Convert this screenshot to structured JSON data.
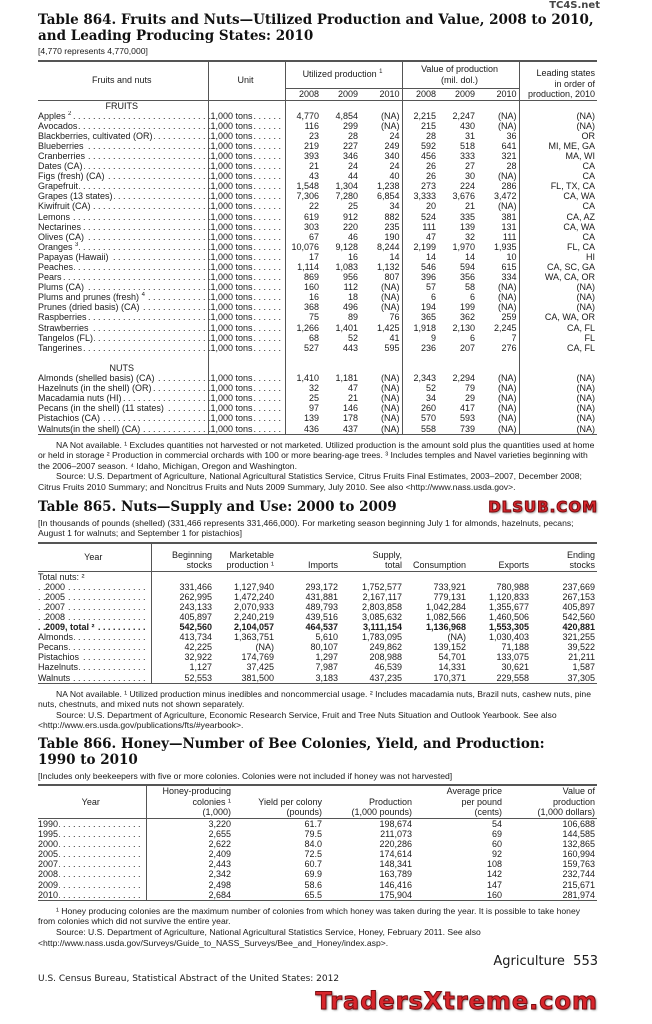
{
  "watermarks": {
    "top": "TC4S.net",
    "middle": "DLSUB.COM",
    "bottom": "TradersXtreme.com"
  },
  "t864": {
    "title1": "Table 864. Fruits and Nuts—Utilized Production and Value, 2008 to 2010,",
    "title2": "and Leading Producing States: 2010",
    "note": "[4,770 represents 4,770,000]",
    "headers": {
      "name": "Fruits and nuts",
      "unit": "Unit",
      "util": "Utilized production",
      "util_sup": "1",
      "value1": "Value of production",
      "value2": "(mil. dol.)",
      "states1": "Leading states",
      "states2": "in order of",
      "states3": "production, 2010",
      "y2008": "2008",
      "y2009": "2009",
      "y2010": "2010"
    },
    "fruits_label": "FRUITS",
    "nuts_label": "NUTS",
    "fruits": [
      [
        "Apples",
        "2",
        "1,000 tons",
        "4,770",
        "4,854",
        "(NA)",
        "2,215",
        "2,247",
        "(NA)",
        "(NA)"
      ],
      [
        "Avocados",
        "",
        "1,000 tons",
        "116",
        "299",
        "(NA)",
        "215",
        "430",
        "(NA)",
        "(NA)"
      ],
      [
        "Blackberries, cultivated (OR)",
        "",
        "1,000 tons",
        "23",
        "28",
        "24",
        "28",
        "31",
        "36",
        "OR"
      ],
      [
        "Blueberries",
        "",
        "1,000 tons",
        "219",
        "227",
        "249",
        "592",
        "518",
        "641",
        "MI, ME, GA"
      ],
      [
        "Cranberries",
        "",
        "1,000 tons",
        "393",
        "346",
        "340",
        "456",
        "333",
        "321",
        "MA, WI"
      ],
      [
        "Dates (CA)",
        "",
        "1,000 tons",
        "21",
        "24",
        "24",
        "26",
        "27",
        "28",
        "CA"
      ],
      [
        "Figs (fresh) (CA)",
        "",
        "1,000 tons",
        "43",
        "44",
        "40",
        "26",
        "30",
        "(NA)",
        "CA"
      ],
      [
        "Grapefruit",
        "",
        "1,000 tons",
        "1,548",
        "1,304",
        "1,238",
        "273",
        "224",
        "286",
        "FL, TX, CA"
      ],
      [
        "Grapes (13 states)",
        "",
        "1,000 tons",
        "7,306",
        "7,280",
        "6,854",
        "3,333",
        "3,676",
        "3,472",
        "CA, WA"
      ],
      [
        "Kiwifruit (CA)",
        "",
        "1,000 tons",
        "22",
        "25",
        "34",
        "20",
        "21",
        "(NA)",
        "CA"
      ],
      [
        "Lemons",
        "",
        "1,000 tons",
        "619",
        "912",
        "882",
        "524",
        "335",
        "381",
        "CA, AZ"
      ],
      [
        "Nectarines",
        "",
        "1,000 tons",
        "303",
        "220",
        "235",
        "111",
        "139",
        "131",
        "CA, WA"
      ],
      [
        "Olives (CA)",
        "",
        "1,000 tons",
        "67",
        "46",
        "190",
        "47",
        "32",
        "111",
        "CA"
      ],
      [
        "Oranges",
        "3",
        "1,000 tons",
        "10,076",
        "9,128",
        "8,244",
        "2,199",
        "1,970",
        "1,935",
        "FL, CA"
      ],
      [
        "Papayas (Hawaii)",
        "",
        "1,000 tons",
        "17",
        "16",
        "14",
        "14",
        "14",
        "10",
        "HI"
      ],
      [
        "Peaches",
        "",
        "1,000 tons",
        "1,114",
        "1,083",
        "1,132",
        "546",
        "594",
        "615",
        "CA, SC, GA"
      ],
      [
        "Pears",
        "",
        "1,000 tons",
        "869",
        "956",
        "807",
        "396",
        "356",
        "334",
        "WA, CA, OR"
      ],
      [
        "Plums (CA)",
        "",
        "1,000 tons",
        "160",
        "112",
        "(NA)",
        "57",
        "58",
        "(NA)",
        "(NA)"
      ],
      [
        "Plums and prunes (fresh)",
        "4",
        "1,000 tons",
        "16",
        "18",
        "(NA)",
        "6",
        "6",
        "(NA)",
        "(NA)"
      ],
      [
        "Prunes (dried basis) (CA)",
        "",
        "1,000 tons",
        "368",
        "496",
        "(NA)",
        "194",
        "199",
        "(NA)",
        "(NA)"
      ],
      [
        "Raspberries",
        "",
        "1,000 tons",
        "75",
        "89",
        "76",
        "365",
        "362",
        "259",
        "CA, WA, OR"
      ],
      [
        "Strawberries",
        "",
        "1,000 tons",
        "1,266",
        "1,401",
        "1,425",
        "1,918",
        "2,130",
        "2,245",
        "CA, FL"
      ],
      [
        "Tangelos (FL)",
        "",
        "1,000 tons",
        "68",
        "52",
        "41",
        "9",
        "6",
        "7",
        "FL"
      ],
      [
        "Tangerines",
        "",
        "1,000 tons",
        "527",
        "443",
        "595",
        "236",
        "207",
        "276",
        "CA, FL"
      ]
    ],
    "nuts": [
      [
        "Almonds (shelled basis) (CA)",
        "",
        "1,000 tons",
        "1,410",
        "1,181",
        "(NA)",
        "2,343",
        "2,294",
        "(NA)",
        "(NA)"
      ],
      [
        "Hazelnuts (in the shell) (OR)",
        "",
        "1,000 tons",
        "32",
        "47",
        "(NA)",
        "52",
        "79",
        "(NA)",
        "(NA)"
      ],
      [
        "Macadamia nuts (HI)",
        "",
        "1,000 tons",
        "25",
        "21",
        "(NA)",
        "34",
        "29",
        "(NA)",
        "(NA)"
      ],
      [
        "Pecans (in the shell) (11 states)",
        "",
        "1,000 tons",
        "97",
        "146",
        "(NA)",
        "260",
        "417",
        "(NA)",
        "(NA)"
      ],
      [
        "Pistachios (CA)",
        "",
        "1,000 tons",
        "139",
        "178",
        "(NA)",
        "570",
        "593",
        "(NA)",
        "(NA)"
      ],
      [
        "Walnuts(in the shell) (CA)",
        "",
        "1,000 tons",
        "436",
        "437",
        "(NA)",
        "558",
        "739",
        "(NA)",
        "(NA)"
      ]
    ],
    "footnotes": [
      "NA Not available. ¹ Excludes quantities not harvested or not marketed. Utilized production is the amount sold plus the quantities used at home or held in storage ² Production in commercial orchards with 100 or more bearing-age trees. ³ Includes temples and Navel varieties beginning with the 2006–2007 season. ⁴ Idaho, Michigan, Oregon and Washington.",
      "Source: U.S. Department of Agriculture, National Agricultural Statistics Service, Citrus Fruits Final Estimates, 2003–2007, December 2008; Citrus Fruits 2010 Summary; and Noncitrus Fruits and Nuts 2009 Summary, July 2010. See also <http://www.nass.usda.gov>."
    ]
  },
  "t865": {
    "title": "Table 865. Nuts—Supply and Use: 2000 to 2009",
    "note": "[In thousands of pounds (shelled) (331,466 represents 331,466,000). For marketing season beginning July 1 for almonds, hazelnuts, pecans; August 1 for walnuts; and September 1 for pistachios]",
    "headers": [
      [
        "Year",
        ""
      ],
      [
        "Beginning",
        "stocks"
      ],
      [
        "Marketable",
        "production ¹"
      ],
      [
        "",
        "Imports"
      ],
      [
        "Supply,",
        "total"
      ],
      [
        "",
        "Consumption"
      ],
      [
        "",
        "Exports"
      ],
      [
        "Ending",
        "stocks"
      ]
    ],
    "group_label": "Total nuts: ²",
    "rows": [
      [
        "2000",
        "331,466",
        "1,127,940",
        "293,172",
        "1,752,577",
        "733,921",
        "780,988",
        "237,669"
      ],
      [
        "2005",
        "262,995",
        "1,472,240",
        "431,881",
        "2,167,117",
        "779,131",
        "1,120,833",
        "267,153"
      ],
      [
        "2007",
        "243,133",
        "2,070,933",
        "489,793",
        "2,803,858",
        "1,042,284",
        "1,355,677",
        "405,897"
      ],
      [
        "2008",
        "405,897",
        "2,240,219",
        "439,516",
        "3,085,632",
        "1,082,566",
        "1,460,506",
        "542,560"
      ],
      [
        "2009, total ²",
        "542,560",
        "2,104,057",
        "464,537",
        "3,111,154",
        "1,136,968",
        "1,553,305",
        "420,881"
      ],
      [
        "Almonds",
        "413,734",
        "1,363,751",
        "5,610",
        "1,783,095",
        "(NA)",
        "1,030,403",
        "321,255"
      ],
      [
        "Pecans",
        "42,225",
        "(NA)",
        "80,107",
        "249,862",
        "139,152",
        "71,188",
        "39,522"
      ],
      [
        "Pistachios",
        "32,922",
        "174,769",
        "1,297",
        "208,988",
        "54,701",
        "133,075",
        "21,211"
      ],
      [
        "Hazelnuts",
        "1,127",
        "37,425",
        "7,987",
        "46,539",
        "14,331",
        "30,621",
        "1,587"
      ],
      [
        "Walnuts",
        "52,553",
        "381,500",
        "3,183",
        "437,235",
        "170,371",
        "229,558",
        "37,305"
      ]
    ],
    "footnotes": [
      "NA Not available. ¹ Utilized production minus inedibles and noncommercial usage. ² Includes macadamia nuts, Brazil nuts, cashew nuts, pine nuts, chestnuts, and mixed nuts not shown separately.",
      "Source: U.S. Department of Agriculture, Economic Research Service, Fruit and Tree Nuts Situation and Outlook Yearbook. See also <http://www.ers.usda.gov/publications/fts/#yearbook>."
    ]
  },
  "t866": {
    "title1": "Table 866. Honey—Number of Bee Colonies, Yield, and Production:",
    "title2": "1990 to 2010",
    "note": "[Includes only beekeepers with five or more colonies. Colonies were not included if honey was not harvested]",
    "headers": [
      [
        "",
        "Year",
        ""
      ],
      [
        "Honey-producing",
        "colonies ¹",
        "(1,000)"
      ],
      [
        "",
        "Yield per colony",
        "(pounds)"
      ],
      [
        "",
        "Production",
        "(1,000 pounds)"
      ],
      [
        "Average price",
        "per pound",
        "(cents)"
      ],
      [
        "Value of",
        "production",
        "(1,000 dollars)"
      ]
    ],
    "rows": [
      [
        "1990",
        "3,220",
        "61.7",
        "198,674",
        "54",
        "106,688"
      ],
      [
        "1995",
        "2,655",
        "79.5",
        "211,073",
        "69",
        "144,585"
      ],
      [
        "2000",
        "2,622",
        "84.0",
        "220,286",
        "60",
        "132,865"
      ],
      [
        "2005",
        "2,409",
        "72.5",
        "174,614",
        "92",
        "160,994"
      ],
      [
        "2007",
        "2,443",
        "60.7",
        "148,341",
        "108",
        "159,763"
      ],
      [
        "2008",
        "2,342",
        "69.9",
        "163,789",
        "142",
        "232,744"
      ],
      [
        "2009",
        "2,498",
        "58.6",
        "146,416",
        "147",
        "215,671"
      ],
      [
        "2010",
        "2,684",
        "65.5",
        "175,904",
        "160",
        "281,974"
      ]
    ],
    "footnotes": [
      "¹ Honey producing colonies are the maximum number of colonies from which honey was taken during the year. It is possible to take honey from colonies which did not survive the entire year.",
      "Source: U.S. Department of Agriculture, National Agricultural Statistics Service, Honey, February 2011. See also <http://www.nass.usda.gov/Surveys/Guide_to_NASS_Surveys/Bee_and_Honey/index.asp>."
    ]
  },
  "footer": {
    "section": "Agriculture",
    "page": "553",
    "source": "U.S. Census Bureau, Statistical Abstract of the United States: 2012"
  }
}
